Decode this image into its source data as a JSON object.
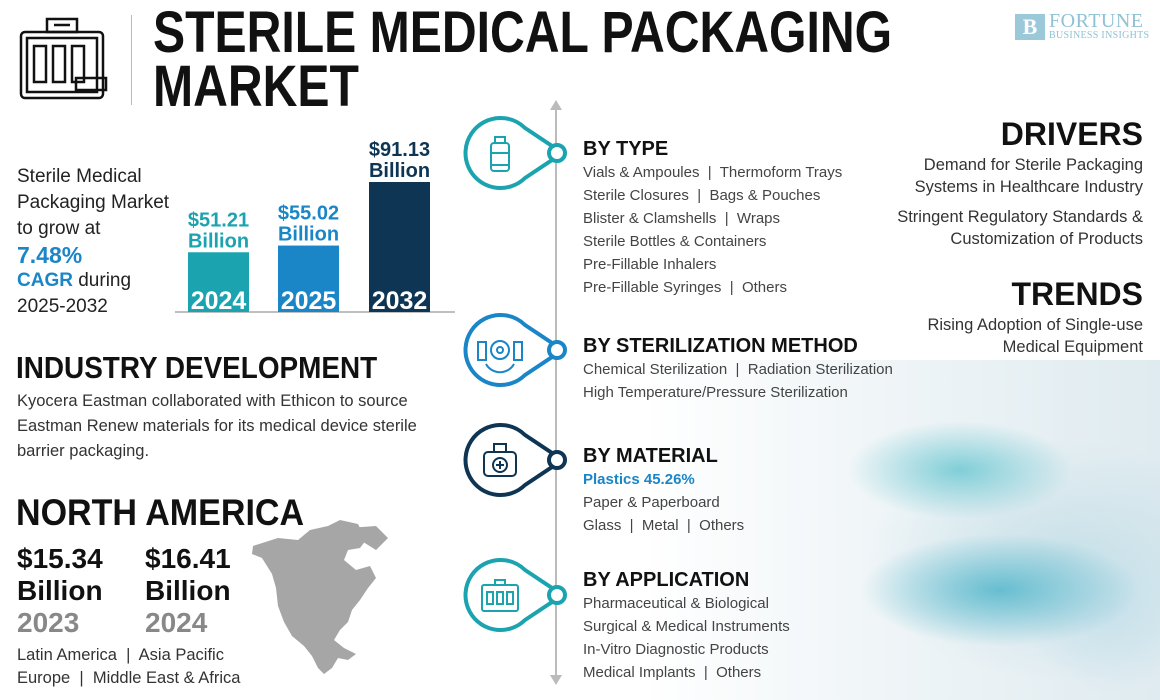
{
  "header": {
    "title_line1": "STERILE MEDICAL PACKAGING",
    "title_line2": "MARKET",
    "logo_line1": "FORTUNE",
    "logo_line2": "BUSINESS INSIGHTS",
    "logo_mark": "B"
  },
  "growth": {
    "line1": "Sterile Medical",
    "line2": "Packaging Market",
    "line3": "to grow at",
    "rate": "7.48%",
    "cagr": "CAGR",
    "during": " during",
    "period": "2025-2032"
  },
  "chart_data": {
    "type": "bar",
    "categories": [
      "2024",
      "2025",
      "2032"
    ],
    "values": [
      51.21,
      55.02,
      91.13
    ],
    "value_labels": [
      "$51.21",
      "$55.02",
      "$91.13"
    ],
    "unit_label": "Billion",
    "colors": [
      "#1ca3b0",
      "#1a86c7",
      "#0e3553"
    ],
    "label_colors": [
      "#1ca3b0",
      "#1a86c7",
      "#0e3553"
    ]
  },
  "industry": {
    "title": "INDUSTRY DEVELOPMENT",
    "text": "Kyocera Eastman collaborated with Ethicon to source Eastman Renew materials for its medical device sterile barrier packaging."
  },
  "north_america": {
    "title": "NORTH AMERICA",
    "stats": [
      {
        "value": "$15.34",
        "unit": "Billion",
        "year": "2023"
      },
      {
        "value": "$16.41",
        "unit": "Billion",
        "year": "2024"
      }
    ],
    "regions_line1": "Latin America  |  Asia Pacific",
    "regions_line2": "Europe  |  Middle East & Africa"
  },
  "segments": [
    {
      "title": "BY TYPE",
      "icon": "vial-icon",
      "color": "#1ca3b0",
      "items": [
        "Vials & Ampoules  |  Thermoform Trays",
        "Sterile Closures  |  Bags & Pouches",
        "Blister & Clamshells  |  Wraps",
        "Sterile Bottles & Containers",
        "Pre-Fillable Inhalers",
        "Pre-Fillable Syringes  |  Others"
      ]
    },
    {
      "title": "BY STERILIZATION METHOD",
      "icon": "virus-vials-icon",
      "color": "#1a86c7",
      "items": [
        "Chemical Sterilization  |  Radiation Sterilization",
        "High Temperature/Pressure Sterilization"
      ]
    },
    {
      "title": "BY MATERIAL",
      "icon": "medical-bag-icon",
      "color": "#0e3553",
      "highlight": "Plastics 45.26%",
      "items": [
        "Paper & Paperboard",
        "Glass  |  Metal  |  Others"
      ]
    },
    {
      "title": "BY APPLICATION",
      "icon": "vial-case-icon",
      "color": "#1ca3b0",
      "items": [
        "Pharmaceutical & Biological",
        "Surgical & Medical Instruments",
        "In-Vitro Diagnostic Products",
        "Medical Implants  |  Others"
      ]
    }
  ],
  "drivers": {
    "title": "DRIVERS",
    "items": [
      [
        "Demand for Sterile Packaging",
        "Systems in Healthcare Industry"
      ],
      [
        "Stringent Regulatory Standards &",
        "Customization of Products"
      ]
    ]
  },
  "trends": {
    "title": "TRENDS",
    "items": [
      [
        "Rising Adoption of Single-use",
        "Medical Equipment"
      ]
    ]
  }
}
